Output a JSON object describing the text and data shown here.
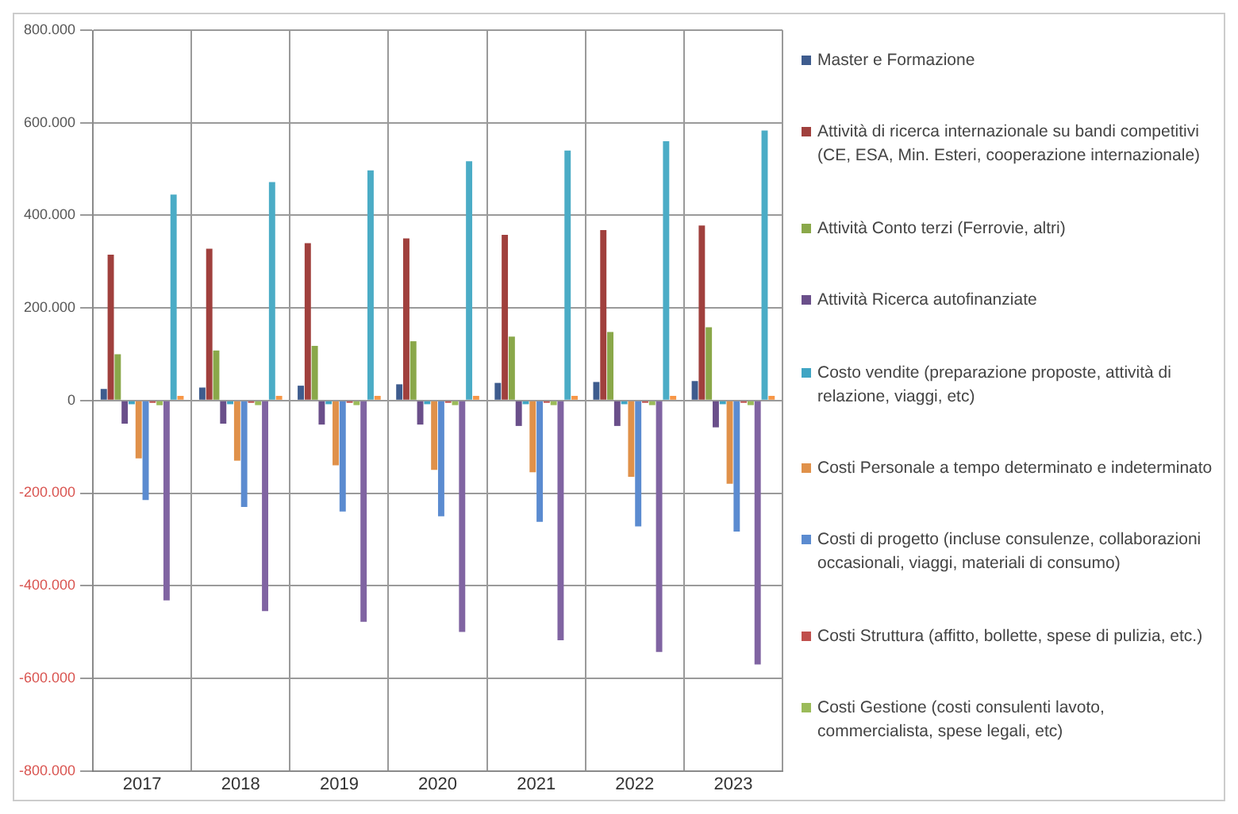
{
  "chart_data": {
    "type": "bar",
    "categories": [
      "2017",
      "2018",
      "2019",
      "2020",
      "2021",
      "2022",
      "2023"
    ],
    "series": [
      {
        "name": "Master e Formazione",
        "color": "#3e5c8e",
        "values": [
          25000,
          28000,
          32000,
          35000,
          38000,
          40000,
          42000
        ]
      },
      {
        "name": "Attività di ricerca internazionale su bandi competitivi (CE, ESA, Min. Esteri, cooperazione internazionale)",
        "color": "#a0403d",
        "values": [
          315000,
          328000,
          340000,
          350000,
          358000,
          368000,
          378000
        ]
      },
      {
        "name": "Attività Conto terzi (Ferrovie, altri)",
        "color": "#8aa84a",
        "values": [
          100000,
          108000,
          118000,
          128000,
          138000,
          148000,
          158000
        ]
      },
      {
        "name": "Attività Ricerca  autofinanziate",
        "color": "#6a4f8a",
        "values": [
          -50000,
          -50000,
          -52000,
          -52000,
          -55000,
          -55000,
          -58000
        ]
      },
      {
        "name": "Costo vendite (preparazione proposte, attività di relazione, viaggi, etc)",
        "color": "#3fa5c4",
        "values": [
          -8000,
          -8000,
          -8000,
          -8000,
          -8000,
          -8000,
          -8000
        ]
      },
      {
        "name": "Costi Personale a tempo determinato e indeterminato",
        "color": "#e0914a",
        "values": [
          -125000,
          -130000,
          -140000,
          -150000,
          -155000,
          -165000,
          -180000
        ]
      },
      {
        "name": "Costi di progetto (incluse consulenze, collaborazioni occasionali, viaggi, materiali di consumo)",
        "color": "#5b8bd0",
        "values": [
          -215000,
          -230000,
          -240000,
          -250000,
          -262000,
          -272000,
          -283000
        ]
      },
      {
        "name": "Costi Struttura (affitto, bollette, spese di pulizia, etc.)",
        "color": "#c0504d",
        "values": [
          -5000,
          -5000,
          -5000,
          -5000,
          -5000,
          -5000,
          -5000
        ]
      },
      {
        "name": "Costi Gestione (costi consulenti lavoto, commercialista, spese legali, etc)",
        "color": "#9bbb59",
        "values": [
          -10000,
          -10000,
          -10000,
          -10000,
          -10000,
          -10000,
          -10000
        ]
      },
      {
        "color": "#8064a2",
        "values": [
          -432000,
          -455000,
          -478000,
          -500000,
          -518000,
          -543000,
          -570000
        ]
      },
      {
        "color": "#4bacc6",
        "values": [
          445000,
          472000,
          497000,
          517000,
          540000,
          560000,
          583000
        ]
      },
      {
        "color": "#f79646",
        "values": [
          10000,
          10000,
          10000,
          10000,
          10000,
          10000,
          10000
        ]
      }
    ],
    "ylim": [
      -800000,
      800000
    ],
    "yticks": [
      {
        "value": -800000,
        "label": "-800.000"
      },
      {
        "value": -600000,
        "label": "-600.000"
      },
      {
        "value": -400000,
        "label": "-400.000"
      },
      {
        "value": -200000,
        "label": "-200.000"
      },
      {
        "value": 0,
        "label": "0"
      },
      {
        "value": 200000,
        "label": "200.000"
      },
      {
        "value": 400000,
        "label": "400.000"
      },
      {
        "value": 600000,
        "label": "600.000"
      },
      {
        "value": 800000,
        "label": "800.000"
      }
    ],
    "grid": true,
    "legend": "right"
  }
}
